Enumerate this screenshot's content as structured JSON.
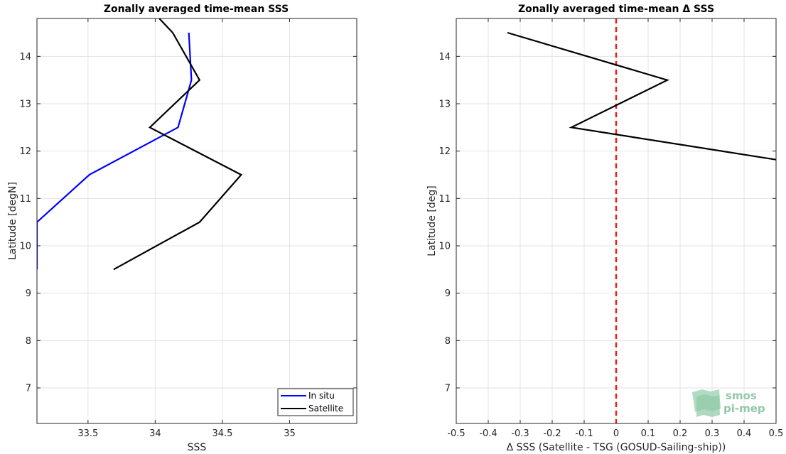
{
  "chart_data": [
    {
      "type": "line",
      "title": "Zonally averaged time-mean SSS",
      "xlabel": "SSS",
      "ylabel": "Latitude [degN]",
      "xlim": [
        33.12,
        35.5
      ],
      "ylim": [
        6.25,
        14.8
      ],
      "xticks": [
        33.5,
        34,
        34.5,
        35
      ],
      "xtick_labels": [
        "33.5",
        "34",
        "34.5",
        "35"
      ],
      "yticks": [
        7,
        8,
        9,
        10,
        11,
        12,
        13,
        14
      ],
      "ytick_labels": [
        "7",
        "8",
        "9",
        "10",
        "11",
        "12",
        "13",
        "14"
      ],
      "grid": true,
      "legend": {
        "location": "bottom-right",
        "entries": [
          "In situ",
          "Satellite"
        ]
      },
      "series": [
        {
          "name": "In situ",
          "color": "#0000ff",
          "x": [
            33.12,
            33.12,
            33.51,
            34.17,
            34.27,
            34.25
          ],
          "y": [
            9.5,
            10.5,
            11.5,
            12.5,
            13.5,
            14.5
          ]
        },
        {
          "name": "Satellite",
          "color": "#000000",
          "x": [
            33.69,
            34.33,
            34.64,
            33.96,
            34.33,
            34.13,
            34.03
          ],
          "y": [
            9.5,
            10.5,
            11.5,
            12.5,
            13.5,
            14.5,
            14.8
          ]
        }
      ]
    },
    {
      "type": "line",
      "title": "Zonally averaged time-mean Δ SSS",
      "xlabel": "Δ SSS (Satellite - TSG (GOSUD-Sailing-ship))",
      "ylabel": "Latitude [deg]",
      "xlim": [
        -0.5,
        0.5
      ],
      "ylim": [
        6.25,
        14.8
      ],
      "xticks": [
        -0.5,
        -0.4,
        -0.3,
        -0.2,
        -0.1,
        0,
        0.1,
        0.2,
        0.3,
        0.4,
        0.5
      ],
      "xtick_labels": [
        "-0.5",
        "-0.4",
        "-0.3",
        "-0.2",
        "-0.1",
        "0",
        "0.1",
        "0.2",
        "0.3",
        "0.4",
        "0.5"
      ],
      "yticks": [
        7,
        8,
        9,
        10,
        11,
        12,
        13,
        14
      ],
      "ytick_labels": [
        "7",
        "8",
        "9",
        "10",
        "11",
        "12",
        "13",
        "14"
      ],
      "grid": true,
      "reference_line": {
        "x": 0,
        "color": "#e8211c",
        "style": "dashed"
      },
      "series": [
        {
          "color": "#000000",
          "x": [
            -0.34,
            0.16,
            -0.14,
            0.5
          ],
          "y": [
            14.5,
            13.5,
            12.5,
            11.82
          ]
        }
      ]
    }
  ],
  "watermark": {
    "line1": "smos",
    "line2": "pi-mep"
  }
}
